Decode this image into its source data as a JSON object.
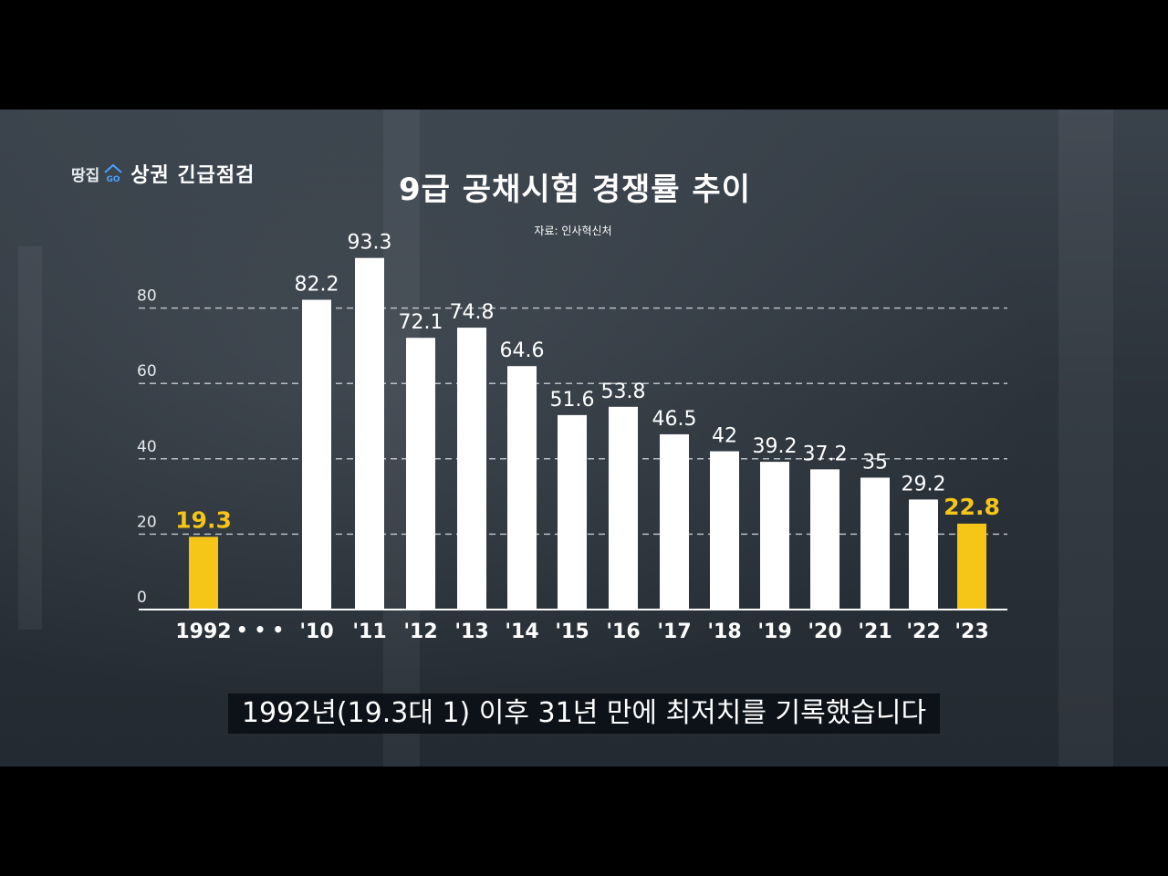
{
  "logo": {
    "brand": "땅집",
    "icon": "go-badge-icon",
    "section": "상권 긴급점검"
  },
  "title": "9급 공채시험 경쟁률 추이",
  "source": "자료: 인사혁신처",
  "subtitle": "1992년(19.3대 1) 이후 31년 만에 최저치를 기록했습니다",
  "colors": {
    "bar": "#ffffff",
    "highlight": "#f5c518",
    "gridline": "#cfd5db"
  },
  "chart_data": {
    "type": "bar",
    "title": "9급 공채시험 경쟁률 추이",
    "categories": [
      "1992",
      "'10",
      "'11",
      "'12",
      "'13",
      "'14",
      "'15",
      "'16",
      "'17",
      "'18",
      "'19",
      "'20",
      "'21",
      "'22",
      "'23"
    ],
    "values": [
      19.3,
      82.2,
      93.3,
      72.1,
      74.8,
      64.6,
      51.6,
      53.8,
      46.5,
      42,
      39.2,
      37.2,
      35,
      29.2,
      22.8
    ],
    "data_labels": [
      "19.3",
      "82.2",
      "93.3",
      "72.1",
      "74.8",
      "64.6",
      "51.6",
      "53.8",
      "46.5",
      "42",
      "39.2",
      "37.2",
      "35",
      "29.2",
      "22.8"
    ],
    "highlighted": [
      "1992",
      "'23"
    ],
    "axis_break_label": "• • •",
    "yticks": [
      0,
      20,
      40,
      60,
      80
    ],
    "ylim": [
      0,
      100
    ],
    "grid": true,
    "xlabel": "",
    "ylabel": ""
  }
}
